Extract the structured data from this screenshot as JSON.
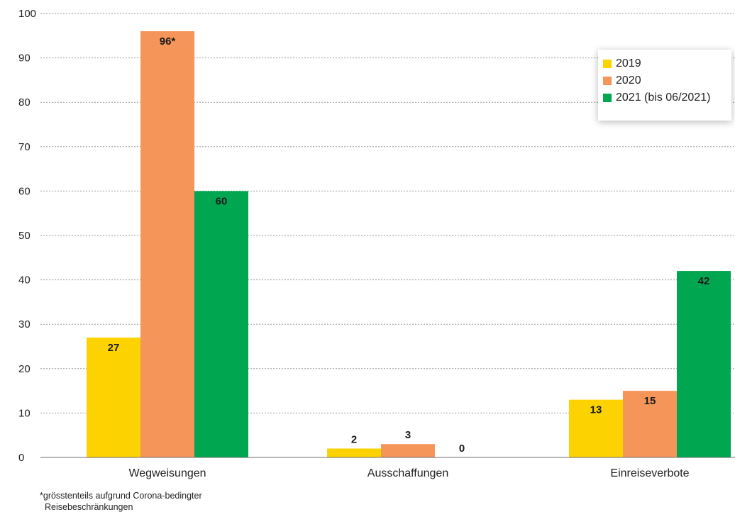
{
  "chart_data": {
    "type": "bar",
    "categories": [
      "Wegweisungen",
      "Ausschaffungen",
      "Einreiseverbote"
    ],
    "series": [
      {
        "name": "2019",
        "color": "#FCD200",
        "values": [
          27,
          2,
          13
        ],
        "labels": [
          "27",
          "2",
          "13"
        ]
      },
      {
        "name": "2020",
        "color": "#F5955A",
        "values": [
          96,
          3,
          15
        ],
        "labels": [
          "96*",
          "3",
          "15"
        ]
      },
      {
        "name": "2021 (bis 06/2021)",
        "color": "#00A650",
        "values": [
          60,
          0,
          42
        ],
        "labels": [
          "60",
          "0",
          "42"
        ]
      }
    ],
    "yticks": [
      "0",
      "10",
      "20",
      "30",
      "40",
      "50",
      "60",
      "70",
      "80",
      "90",
      "100"
    ],
    "ylim": [
      0,
      100
    ],
    "grid": true,
    "legend_position": "top-right"
  },
  "footnote": {
    "line1": "*grösstenteils aufgrund Corona-bedingter",
    "line2": "Reisebeschränkungen"
  }
}
